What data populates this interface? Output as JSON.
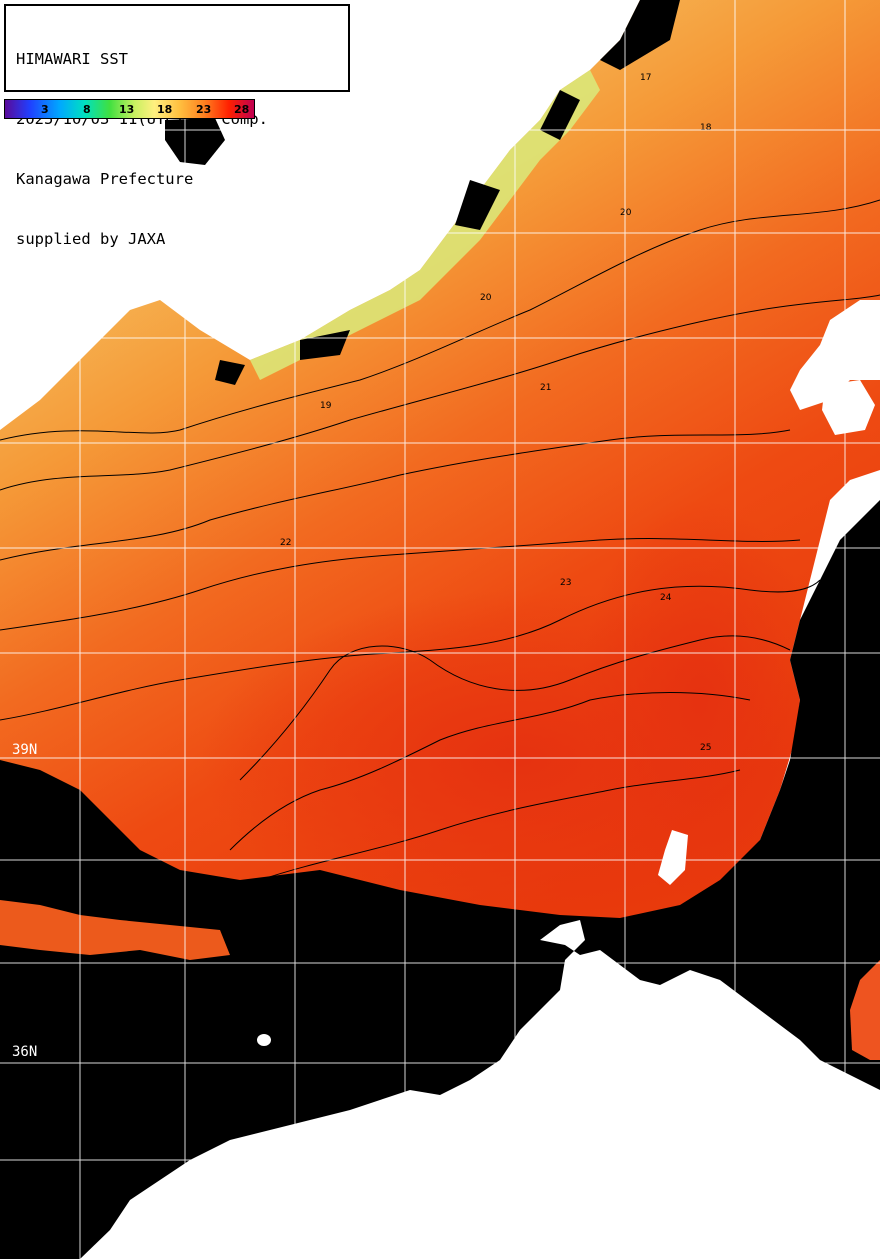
{
  "title": {
    "line1": "HIMAWARI SST",
    "line2": "2025/10/03 11(UTC) 3H Comp.",
    "line3": "Kanagawa Prefecture",
    "line4": "supplied by JAXA"
  },
  "colorbar": {
    "ticks": [
      "3",
      "8",
      "13",
      "18",
      "23",
      "28"
    ]
  },
  "latitude_labels": [
    "39N",
    "36N"
  ],
  "contour_labels": [
    "17",
    "18",
    "19",
    "20",
    "21",
    "22",
    "23",
    "24",
    "25"
  ],
  "colors": {
    "land": "#ffffff",
    "no_data": "#000000",
    "grid": "#ffffff",
    "contour": "#000000"
  }
}
